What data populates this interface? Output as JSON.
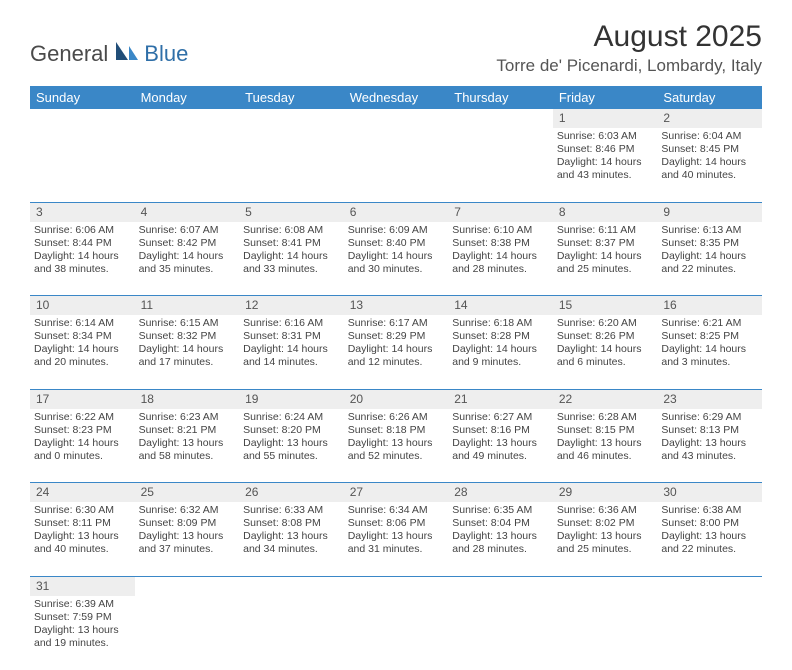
{
  "logo": {
    "general": "General",
    "blue": "Blue"
  },
  "title": "August 2025",
  "location": "Torre de' Picenardi, Lombardy, Italy",
  "colors": {
    "header_bg": "#3a87c7",
    "header_text": "#ffffff",
    "daynum_bg": "#eeeeee",
    "divider": "#3a87c7",
    "logo_blue": "#2f6fa8",
    "logo_dark": "#214e78"
  },
  "weekdays": [
    "Sunday",
    "Monday",
    "Tuesday",
    "Wednesday",
    "Thursday",
    "Friday",
    "Saturday"
  ],
  "weeks": [
    {
      "nums": [
        "",
        "",
        "",
        "",
        "",
        "1",
        "2"
      ],
      "cells": [
        null,
        null,
        null,
        null,
        null,
        {
          "sunrise": "Sunrise: 6:03 AM",
          "sunset": "Sunset: 8:46 PM",
          "dl1": "Daylight: 14 hours",
          "dl2": "and 43 minutes."
        },
        {
          "sunrise": "Sunrise: 6:04 AM",
          "sunset": "Sunset: 8:45 PM",
          "dl1": "Daylight: 14 hours",
          "dl2": "and 40 minutes."
        }
      ]
    },
    {
      "nums": [
        "3",
        "4",
        "5",
        "6",
        "7",
        "8",
        "9"
      ],
      "cells": [
        {
          "sunrise": "Sunrise: 6:06 AM",
          "sunset": "Sunset: 8:44 PM",
          "dl1": "Daylight: 14 hours",
          "dl2": "and 38 minutes."
        },
        {
          "sunrise": "Sunrise: 6:07 AM",
          "sunset": "Sunset: 8:42 PM",
          "dl1": "Daylight: 14 hours",
          "dl2": "and 35 minutes."
        },
        {
          "sunrise": "Sunrise: 6:08 AM",
          "sunset": "Sunset: 8:41 PM",
          "dl1": "Daylight: 14 hours",
          "dl2": "and 33 minutes."
        },
        {
          "sunrise": "Sunrise: 6:09 AM",
          "sunset": "Sunset: 8:40 PM",
          "dl1": "Daylight: 14 hours",
          "dl2": "and 30 minutes."
        },
        {
          "sunrise": "Sunrise: 6:10 AM",
          "sunset": "Sunset: 8:38 PM",
          "dl1": "Daylight: 14 hours",
          "dl2": "and 28 minutes."
        },
        {
          "sunrise": "Sunrise: 6:11 AM",
          "sunset": "Sunset: 8:37 PM",
          "dl1": "Daylight: 14 hours",
          "dl2": "and 25 minutes."
        },
        {
          "sunrise": "Sunrise: 6:13 AM",
          "sunset": "Sunset: 8:35 PM",
          "dl1": "Daylight: 14 hours",
          "dl2": "and 22 minutes."
        }
      ]
    },
    {
      "nums": [
        "10",
        "11",
        "12",
        "13",
        "14",
        "15",
        "16"
      ],
      "cells": [
        {
          "sunrise": "Sunrise: 6:14 AM",
          "sunset": "Sunset: 8:34 PM",
          "dl1": "Daylight: 14 hours",
          "dl2": "and 20 minutes."
        },
        {
          "sunrise": "Sunrise: 6:15 AM",
          "sunset": "Sunset: 8:32 PM",
          "dl1": "Daylight: 14 hours",
          "dl2": "and 17 minutes."
        },
        {
          "sunrise": "Sunrise: 6:16 AM",
          "sunset": "Sunset: 8:31 PM",
          "dl1": "Daylight: 14 hours",
          "dl2": "and 14 minutes."
        },
        {
          "sunrise": "Sunrise: 6:17 AM",
          "sunset": "Sunset: 8:29 PM",
          "dl1": "Daylight: 14 hours",
          "dl2": "and 12 minutes."
        },
        {
          "sunrise": "Sunrise: 6:18 AM",
          "sunset": "Sunset: 8:28 PM",
          "dl1": "Daylight: 14 hours",
          "dl2": "and 9 minutes."
        },
        {
          "sunrise": "Sunrise: 6:20 AM",
          "sunset": "Sunset: 8:26 PM",
          "dl1": "Daylight: 14 hours",
          "dl2": "and 6 minutes."
        },
        {
          "sunrise": "Sunrise: 6:21 AM",
          "sunset": "Sunset: 8:25 PM",
          "dl1": "Daylight: 14 hours",
          "dl2": "and 3 minutes."
        }
      ]
    },
    {
      "nums": [
        "17",
        "18",
        "19",
        "20",
        "21",
        "22",
        "23"
      ],
      "cells": [
        {
          "sunrise": "Sunrise: 6:22 AM",
          "sunset": "Sunset: 8:23 PM",
          "dl1": "Daylight: 14 hours",
          "dl2": "and 0 minutes."
        },
        {
          "sunrise": "Sunrise: 6:23 AM",
          "sunset": "Sunset: 8:21 PM",
          "dl1": "Daylight: 13 hours",
          "dl2": "and 58 minutes."
        },
        {
          "sunrise": "Sunrise: 6:24 AM",
          "sunset": "Sunset: 8:20 PM",
          "dl1": "Daylight: 13 hours",
          "dl2": "and 55 minutes."
        },
        {
          "sunrise": "Sunrise: 6:26 AM",
          "sunset": "Sunset: 8:18 PM",
          "dl1": "Daylight: 13 hours",
          "dl2": "and 52 minutes."
        },
        {
          "sunrise": "Sunrise: 6:27 AM",
          "sunset": "Sunset: 8:16 PM",
          "dl1": "Daylight: 13 hours",
          "dl2": "and 49 minutes."
        },
        {
          "sunrise": "Sunrise: 6:28 AM",
          "sunset": "Sunset: 8:15 PM",
          "dl1": "Daylight: 13 hours",
          "dl2": "and 46 minutes."
        },
        {
          "sunrise": "Sunrise: 6:29 AM",
          "sunset": "Sunset: 8:13 PM",
          "dl1": "Daylight: 13 hours",
          "dl2": "and 43 minutes."
        }
      ]
    },
    {
      "nums": [
        "24",
        "25",
        "26",
        "27",
        "28",
        "29",
        "30"
      ],
      "cells": [
        {
          "sunrise": "Sunrise: 6:30 AM",
          "sunset": "Sunset: 8:11 PM",
          "dl1": "Daylight: 13 hours",
          "dl2": "and 40 minutes."
        },
        {
          "sunrise": "Sunrise: 6:32 AM",
          "sunset": "Sunset: 8:09 PM",
          "dl1": "Daylight: 13 hours",
          "dl2": "and 37 minutes."
        },
        {
          "sunrise": "Sunrise: 6:33 AM",
          "sunset": "Sunset: 8:08 PM",
          "dl1": "Daylight: 13 hours",
          "dl2": "and 34 minutes."
        },
        {
          "sunrise": "Sunrise: 6:34 AM",
          "sunset": "Sunset: 8:06 PM",
          "dl1": "Daylight: 13 hours",
          "dl2": "and 31 minutes."
        },
        {
          "sunrise": "Sunrise: 6:35 AM",
          "sunset": "Sunset: 8:04 PM",
          "dl1": "Daylight: 13 hours",
          "dl2": "and 28 minutes."
        },
        {
          "sunrise": "Sunrise: 6:36 AM",
          "sunset": "Sunset: 8:02 PM",
          "dl1": "Daylight: 13 hours",
          "dl2": "and 25 minutes."
        },
        {
          "sunrise": "Sunrise: 6:38 AM",
          "sunset": "Sunset: 8:00 PM",
          "dl1": "Daylight: 13 hours",
          "dl2": "and 22 minutes."
        }
      ]
    },
    {
      "nums": [
        "31",
        "",
        "",
        "",
        "",
        "",
        ""
      ],
      "cells": [
        {
          "sunrise": "Sunrise: 6:39 AM",
          "sunset": "Sunset: 7:59 PM",
          "dl1": "Daylight: 13 hours",
          "dl2": "and 19 minutes."
        },
        null,
        null,
        null,
        null,
        null,
        null
      ]
    }
  ]
}
